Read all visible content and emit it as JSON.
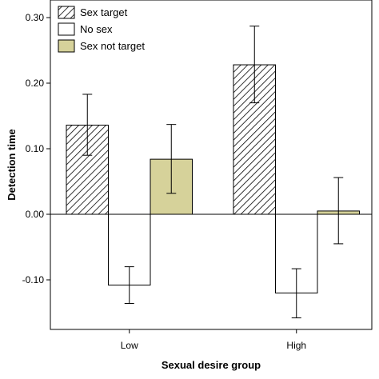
{
  "chart_data": {
    "type": "bar",
    "title": "",
    "xlabel": "Sexual desire group",
    "ylabel": "Detection time",
    "categories": [
      "Low",
      "High"
    ],
    "ylim": [
      -0.17,
      0.33
    ],
    "yticks": [
      -0.1,
      0.0,
      0.1,
      0.2,
      0.3
    ],
    "ytick_labels": [
      "-0.10",
      "0.00",
      "0.10",
      "0.20",
      "0.30"
    ],
    "grid": false,
    "legend_position": "top-left",
    "series": [
      {
        "name": "Sex target",
        "fill": "hatched",
        "color": "#ffffff",
        "values": [
          0.136,
          0.228
        ],
        "error_low": [
          0.09,
          0.17
        ],
        "error_high": [
          0.183,
          0.287
        ]
      },
      {
        "name": "No sex",
        "fill": "solid",
        "color": "#ffffff",
        "values": [
          -0.108,
          -0.12
        ],
        "error_low": [
          -0.136,
          -0.158
        ],
        "error_high": [
          -0.08,
          -0.083
        ]
      },
      {
        "name": "Sex not target",
        "fill": "solid",
        "color": "#d6d29a",
        "values": [
          0.084,
          0.005
        ],
        "error_low": [
          0.032,
          -0.045
        ],
        "error_high": [
          0.137,
          0.056
        ]
      }
    ]
  }
}
